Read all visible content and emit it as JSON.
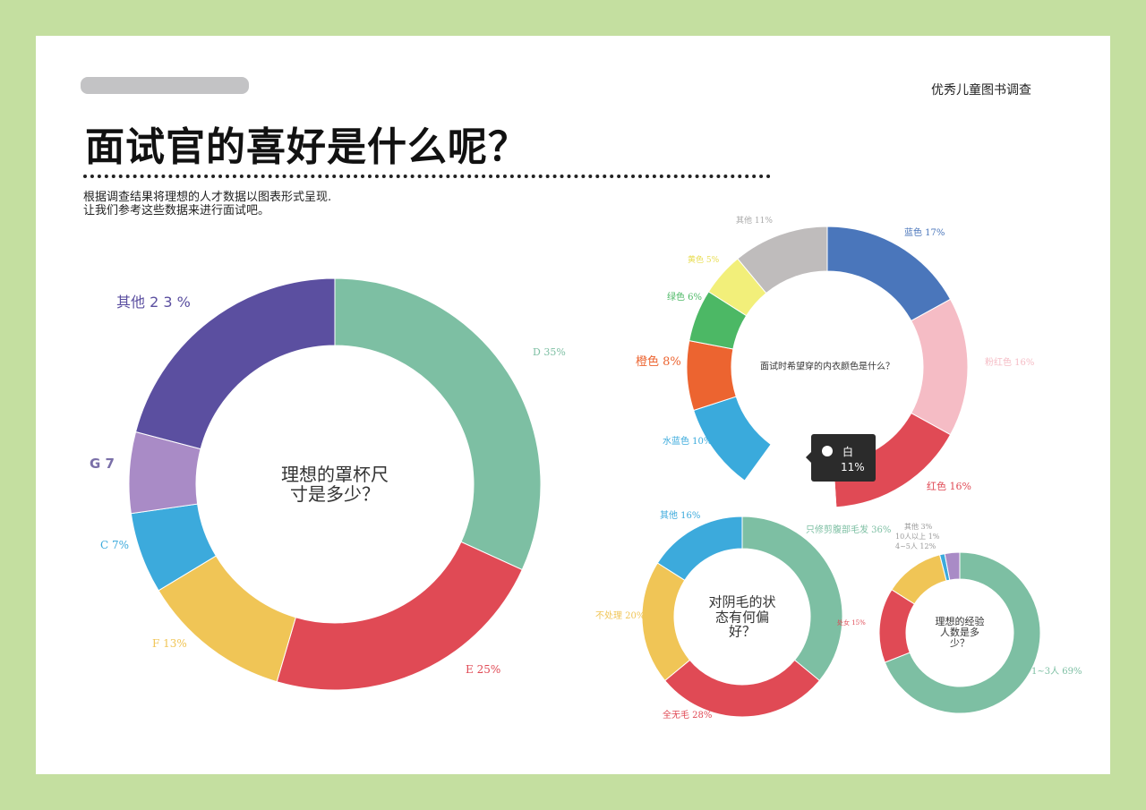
{
  "header": {
    "brand": "优秀儿童图书调查",
    "title": "面试官的喜好是什么呢？",
    "subtitle_lines": [
      "根据调查结果将理想的人才数据以图表形式呈现.",
      "让我们参考这些数据来进行面试吧。"
    ]
  },
  "chart_data": [
    {
      "type": "pie",
      "donut": true,
      "title": "理想的罩杯尺寸是多少？",
      "categories": [
        "D",
        "E",
        "F",
        "C",
        "G",
        "其他"
      ],
      "values": [
        35,
        25,
        13,
        7,
        7,
        23
      ],
      "labels": [
        "D 35%",
        "E 25%",
        "F 13%",
        "C 7%",
        "G 7",
        "其他 2 3 %"
      ],
      "colors": [
        "#7dbfa3",
        "#e04a55",
        "#f0c556",
        "#3caadc",
        "#a98bc6",
        "#5b4fa0"
      ]
    },
    {
      "type": "pie",
      "donut": true,
      "title": "面试时希望穿的内衣颜色是什么？",
      "categories": [
        "蓝色",
        "粉红色",
        "红色",
        "白",
        "水蓝色",
        "橙色",
        "绿色",
        "黄色",
        "其他"
      ],
      "values": [
        17,
        16,
        16,
        11,
        10,
        8,
        6,
        5,
        11
      ],
      "labels": [
        "蓝色 17%",
        "粉红色 16%",
        "红色 16%",
        "白 11%",
        "水蓝色 10%",
        "橙色 8%",
        "绿色 6%",
        "黄色 5%",
        "其他 11%"
      ],
      "colors": [
        "#4a76bb",
        "#f5bcc5",
        "#e04a55",
        "#ffffff",
        "#3aaadc",
        "#ec6430",
        "#4cb865",
        "#f2ef7a",
        "#bfbcbc"
      ],
      "tooltip": {
        "label": "白",
        "value": "11%"
      }
    },
    {
      "type": "pie",
      "donut": true,
      "title": "对阴毛的状态有何偏好？",
      "categories": [
        "只修剪腹部毛发",
        "全无毛",
        "不处理",
        "其他"
      ],
      "values": [
        36,
        28,
        20,
        16
      ],
      "labels": [
        "只修剪腹部毛发 36%",
        "全无毛 28%",
        "不处理 20%",
        "其他 16%"
      ],
      "colors": [
        "#7dbfa3",
        "#e04a55",
        "#f0c556",
        "#3caadc"
      ]
    },
    {
      "type": "pie",
      "donut": true,
      "title": "理想的经验人数是多少？",
      "categories": [
        "1~3人",
        "处女",
        "4~5人",
        "10人以上",
        "其他"
      ],
      "values": [
        69,
        15,
        12,
        1,
        3
      ],
      "labels": [
        "1~3人 69%",
        "处女 15%",
        "4~5人 12%",
        "10人以上 1%",
        "其他 3%"
      ],
      "colors": [
        "#7dbfa3",
        "#e04a55",
        "#f0c556",
        "#3caadc",
        "#a98bc6"
      ]
    }
  ]
}
